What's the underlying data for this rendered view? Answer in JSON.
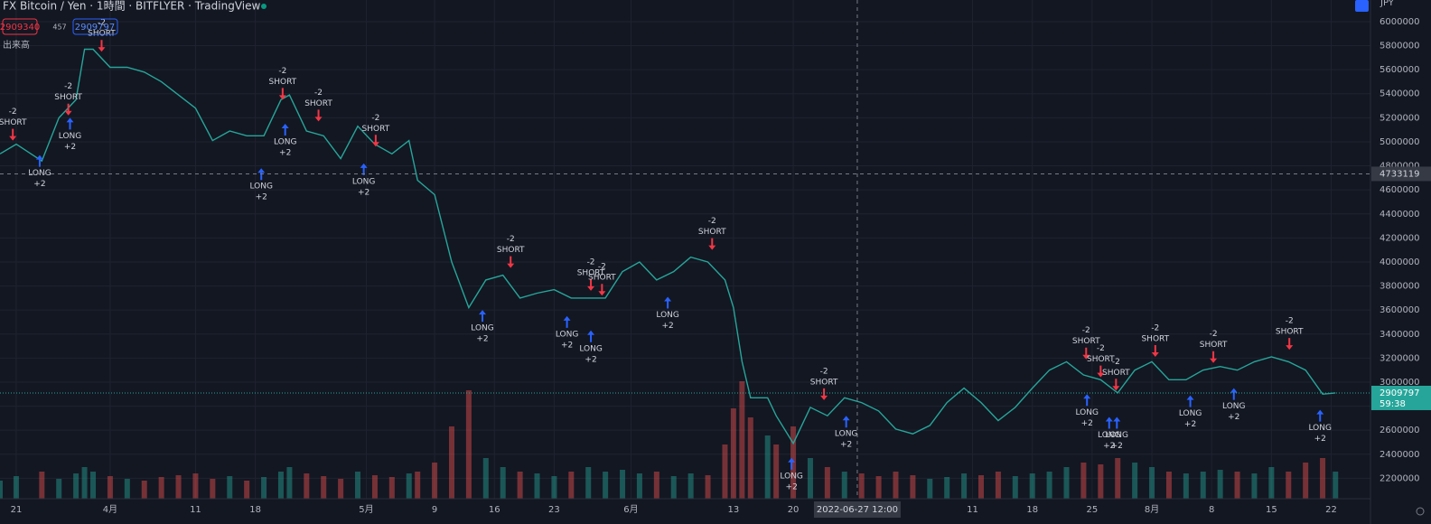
{
  "header": {
    "title": "FX Bitcoin / Yen · 1時間 · BITFLYER · TradingView",
    "bid": 2909340,
    "spread": 457,
    "ask": 2909797,
    "volume_label": "出来高",
    "currency": "JPY"
  },
  "chart_data": {
    "type": "line",
    "color": "#26a69a",
    "grid": true,
    "xlim": [
      -1.9,
      158.6
    ],
    "ylim": [
      2030000,
      6180000
    ],
    "xticks": [
      {
        "value": 0,
        "label": "21"
      },
      {
        "value": 11,
        "label": "4月"
      },
      {
        "value": 21,
        "label": "11"
      },
      {
        "value": 28,
        "label": "18"
      },
      {
        "value": 41,
        "label": "5月"
      },
      {
        "value": 49,
        "label": "9"
      },
      {
        "value": 56,
        "label": "16"
      },
      {
        "value": 63,
        "label": "23"
      },
      {
        "value": 72,
        "label": "6月"
      },
      {
        "value": 84,
        "label": "13"
      },
      {
        "value": 91,
        "label": "20"
      },
      {
        "value": 112,
        "label": "11"
      },
      {
        "value": 119,
        "label": "18"
      },
      {
        "value": 126,
        "label": "25"
      },
      {
        "value": 133,
        "label": "8月"
      },
      {
        "value": 140,
        "label": "8"
      },
      {
        "value": 147,
        "label": "15"
      },
      {
        "value": 154,
        "label": "22"
      }
    ],
    "yticks": [
      2200000,
      2400000,
      2600000,
      2800000,
      3000000,
      3200000,
      3400000,
      3600000,
      3800000,
      4000000,
      4200000,
      4400000,
      4600000,
      4800000,
      5000000,
      5200000,
      5400000,
      5600000,
      5800000,
      6000000
    ],
    "x": [
      -1.9,
      0,
      3,
      5,
      7,
      8,
      9,
      11,
      13,
      15,
      17,
      19,
      21,
      23,
      25,
      27,
      29,
      31,
      32,
      34,
      36,
      38,
      40,
      42,
      44,
      46,
      47,
      49,
      51,
      53,
      55,
      57,
      59,
      61,
      63,
      65,
      67,
      69,
      71,
      73,
      75,
      77,
      79,
      81,
      83,
      84,
      85,
      86,
      88,
      89,
      91,
      93,
      95,
      97,
      99,
      101,
      103,
      105,
      107,
      109,
      111,
      113,
      115,
      117,
      119,
      121,
      123,
      125,
      127,
      129,
      131,
      133,
      135,
      137,
      139,
      141,
      143,
      145,
      147,
      149,
      151,
      153,
      154.5
    ],
    "values": [
      4900000,
      4980000,
      4840000,
      5200000,
      5350000,
      5770000,
      5770000,
      5620000,
      5620000,
      5580000,
      5500000,
      5390000,
      5280000,
      5010000,
      5090000,
      5050000,
      5050000,
      5350000,
      5390000,
      5090000,
      5050000,
      4860000,
      5130000,
      4980000,
      4900000,
      5010000,
      4680000,
      4560000,
      4000000,
      3620000,
      3850000,
      3890000,
      3700000,
      3740000,
      3770000,
      3700000,
      3700000,
      3700000,
      3920000,
      4000000,
      3850000,
      3920000,
      4040000,
      4000000,
      3850000,
      3620000,
      3170000,
      2870000,
      2870000,
      2720000,
      2490000,
      2790000,
      2720000,
      2870000,
      2830000,
      2760000,
      2610000,
      2570000,
      2640000,
      2830000,
      2950000,
      2830000,
      2680000,
      2790000,
      2950000,
      3100000,
      3170000,
      3060000,
      3020000,
      2910000,
      3100000,
      3170000,
      3020000,
      3020000,
      3100000,
      3130000,
      3100000,
      3170000,
      3210000,
      3170000,
      3100000,
      2900000,
      2910000
    ],
    "volume": [
      20,
      25,
      30,
      22,
      28,
      35,
      30,
      25,
      22,
      20,
      24,
      26,
      28,
      22,
      25,
      20,
      24,
      30,
      35,
      28,
      25,
      22,
      30,
      26,
      24,
      28,
      30,
      40,
      80,
      120,
      45,
      35,
      30,
      28,
      25,
      30,
      35,
      30,
      32,
      28,
      30,
      25,
      28,
      26,
      60,
      100,
      130,
      90,
      70,
      60,
      80,
      45,
      35,
      30,
      28,
      25,
      30,
      26,
      22,
      24,
      28,
      26,
      30,
      25,
      28,
      30,
      35,
      40,
      38,
      45,
      40,
      35,
      30,
      28,
      30,
      32,
      30,
      28,
      35,
      30,
      40,
      45,
      30
    ],
    "volume_lim": [
      0,
      150
    ],
    "signals": [
      {
        "side": "SHORT",
        "qty": "-2",
        "x": -0.4,
        "y": 5010000
      },
      {
        "side": "SHORT",
        "qty": "-2",
        "x": 6.1,
        "y": 5220000
      },
      {
        "side": "SHORT",
        "qty": "-2",
        "x": 10,
        "y": 5750000
      },
      {
        "side": "SHORT",
        "qty": "-2",
        "x": 31.2,
        "y": 5350000
      },
      {
        "side": "SHORT",
        "qty": "-2",
        "x": 35.4,
        "y": 5170000
      },
      {
        "side": "SHORT",
        "qty": "-2",
        "x": 42.1,
        "y": 4960000
      },
      {
        "side": "SHORT",
        "qty": "-2",
        "x": 57.9,
        "y": 3950000
      },
      {
        "side": "SHORT",
        "qty": "-2",
        "x": 67.3,
        "y": 3760000
      },
      {
        "side": "SHORT",
        "qty": "-2",
        "x": 68.6,
        "y": 3720000
      },
      {
        "side": "SHORT",
        "qty": "-2",
        "x": 81.5,
        "y": 4100000
      },
      {
        "side": "SHORT",
        "qty": "-2",
        "x": 94.6,
        "y": 2850000
      },
      {
        "side": "SHORT",
        "qty": "-2",
        "x": 125.3,
        "y": 3190000
      },
      {
        "side": "SHORT",
        "qty": "-2",
        "x": 127,
        "y": 3040000
      },
      {
        "side": "SHORT",
        "qty": "-2",
        "x": 128.8,
        "y": 2930000
      },
      {
        "side": "SHORT",
        "qty": "-2",
        "x": 133.4,
        "y": 3210000
      },
      {
        "side": "SHORT",
        "qty": "-2",
        "x": 140.2,
        "y": 3160000
      },
      {
        "side": "SHORT",
        "qty": "-2",
        "x": 149.1,
        "y": 3270000
      },
      {
        "side": "LONG",
        "qty": "+2",
        "x": 2.75,
        "y": 4890000
      },
      {
        "side": "LONG",
        "qty": "+2",
        "x": 6.3,
        "y": 5200000
      },
      {
        "side": "LONG",
        "qty": "+2",
        "x": 31.5,
        "y": 5150000
      },
      {
        "side": "LONG",
        "qty": "+2",
        "x": 28.7,
        "y": 4780000
      },
      {
        "side": "LONG",
        "qty": "+2",
        "x": 40.7,
        "y": 4820000
      },
      {
        "side": "LONG",
        "qty": "+2",
        "x": 54.6,
        "y": 3600000
      },
      {
        "side": "LONG",
        "qty": "+2",
        "x": 64.5,
        "y": 3550000
      },
      {
        "side": "LONG",
        "qty": "+2",
        "x": 67.3,
        "y": 3430000
      },
      {
        "side": "LONG",
        "qty": "+2",
        "x": 76.3,
        "y": 3710000
      },
      {
        "side": "LONG",
        "qty": "+2",
        "x": 90.8,
        "y": 2370000
      },
      {
        "side": "LONG",
        "qty": "+2",
        "x": 97.2,
        "y": 2720000
      },
      {
        "side": "LONG",
        "qty": "+2",
        "x": 125.4,
        "y": 2900000
      },
      {
        "side": "LONG",
        "qty": "+2",
        "x": 128,
        "y": 2710000
      },
      {
        "side": "LONG",
        "qty": "+2",
        "x": 128.9,
        "y": 2710000
      },
      {
        "side": "LONG",
        "qty": "+2",
        "x": 137.5,
        "y": 2890000
      },
      {
        "side": "LONG",
        "qty": "+2",
        "x": 142.6,
        "y": 2950000
      },
      {
        "side": "LONG",
        "qty": "+2",
        "x": 152.7,
        "y": 2770000
      }
    ],
    "crosshair": {
      "x": 98.5,
      "x_label": "2022-06-27  12:00",
      "y": 4733119
    },
    "last_price": 2909797,
    "countdown": "59:38"
  }
}
